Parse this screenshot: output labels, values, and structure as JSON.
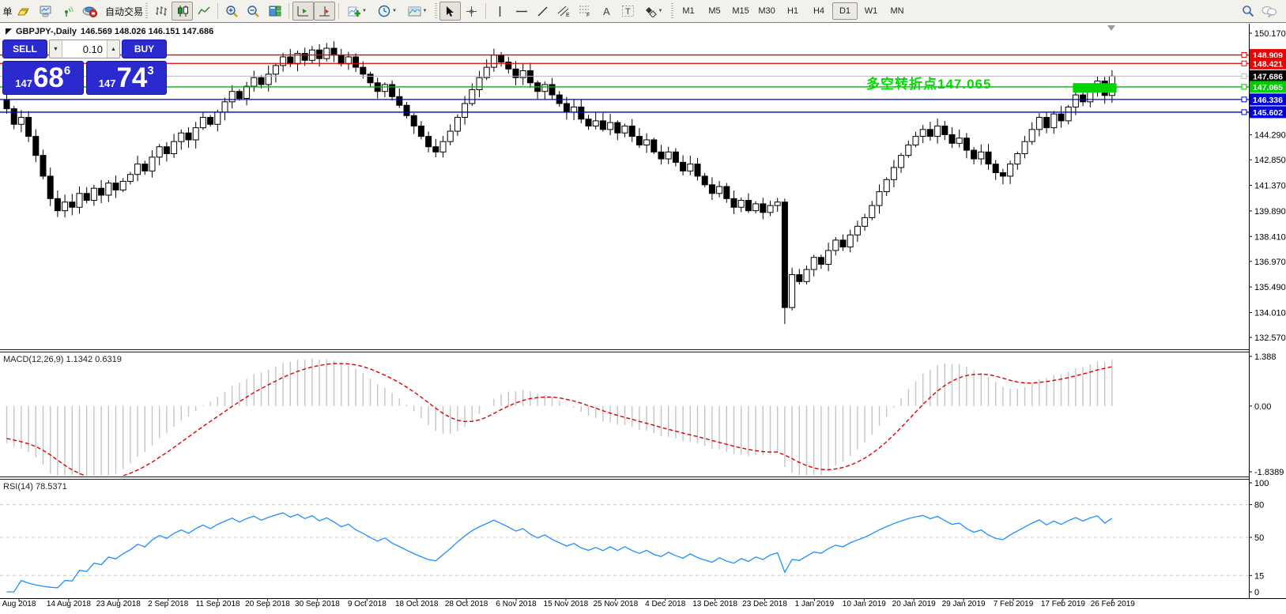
{
  "toolbar": {
    "new_order_partial": "单",
    "auto_trading_label": "自动交易",
    "icons": [
      "new-order",
      "gold-bar",
      "market-watch",
      "signal",
      "auto-trading",
      "bar-chart-type",
      "candlestick-type",
      "line-chart-type",
      "zoom-in",
      "zoom-out",
      "tile-windows",
      "auto-scroll",
      "chart-shift",
      "indicators-add",
      "periods",
      "templates",
      "cursor",
      "crosshair",
      "vertical-line",
      "horizontal-line",
      "trendline",
      "equidistant-channel",
      "fibonacci",
      "text",
      "text-label",
      "arrows",
      "search",
      "chat"
    ],
    "timeframes": [
      "M1",
      "M5",
      "M15",
      "M30",
      "H1",
      "H4",
      "D1",
      "W1",
      "MN"
    ],
    "active_timeframe": "D1"
  },
  "chart": {
    "title_symbol": "GBPJPY-,Daily",
    "title_ohlc": "146.569 148.026 146.151 147.686",
    "trade_panel": {
      "sell": "SELL",
      "buy": "BUY",
      "volume": "0.10",
      "sell_price_prefix": "147",
      "sell_price_main": "68",
      "sell_price_sup": "6",
      "buy_price_prefix": "147",
      "buy_price_main": "74",
      "buy_price_sup": "3"
    },
    "annotation": "多空转折点147.065",
    "annotation_color": "#00dc00",
    "levels": [
      {
        "value": "148.909",
        "color": "#e60000",
        "label_bg": "#ee0000"
      },
      {
        "value": "148.421",
        "color": "#e60000",
        "label_bg": "#ee0000"
      },
      {
        "value": "147.686",
        "color": "#b8b8b8",
        "label_bg": "#000000",
        "current": true
      },
      {
        "value": "147.065",
        "color": "#00bb00",
        "label_bg": "#00cc00"
      },
      {
        "value": "146.336",
        "color": "#0000cc",
        "label_bg": "#0000dd"
      },
      {
        "value": "145.602",
        "color": "#0000cc",
        "label_bg": "#0000dd"
      }
    ],
    "y_ticks": [
      "150.170",
      "144.290",
      "142.850",
      "141.370",
      "139.890",
      "138.410",
      "136.970",
      "135.490",
      "134.010",
      "132.570"
    ],
    "x_labels": [
      "Aug 2018",
      "14 Aug 2018",
      "23 Aug 2018",
      "2 Sep 2018",
      "11 Sep 2018",
      "20 Sep 2018",
      "30 Sep 2018",
      "9 Oct 2018",
      "18 Oct 2018",
      "28 Oct 2018",
      "6 Nov 2018",
      "15 Nov 2018",
      "25 Nov 2018",
      "4 Dec 2018",
      "13 Dec 2018",
      "23 Dec 2018",
      "1 Jan 2019",
      "10 Jan 2019",
      "20 Jan 2019",
      "29 Jan 2019",
      "7 Feb 2019",
      "17 Feb 2019",
      "26 Feb 2019"
    ],
    "green_zone": {
      "start_index": 147,
      "end_index": 153,
      "price_top": 147.28,
      "price_bottom": 146.74,
      "color": "#00d400"
    }
  },
  "chart_data": {
    "type": "candlestick",
    "symbol": "GBPJPY-",
    "period": "Daily",
    "current_ohlc": {
      "open": 146.569,
      "high": 148.026,
      "low": 146.151,
      "close": 147.686
    },
    "first_open": 146.3,
    "crash_index": 107,
    "crash_ohlc": [
      140.4,
      140.6,
      133.35,
      134.3
    ],
    "ylim": [
      131.9,
      150.75
    ],
    "closes": [
      145.8,
      144.9,
      145.3,
      144.2,
      143.1,
      141.9,
      140.6,
      139.9,
      140.4,
      140.1,
      140.9,
      140.5,
      141.2,
      140.8,
      141.5,
      141.1,
      141.6,
      142.0,
      142.6,
      142.2,
      143.0,
      143.6,
      143.2,
      143.9,
      144.4,
      144.0,
      144.7,
      145.3,
      144.9,
      145.6,
      146.2,
      146.8,
      146.4,
      147.1,
      147.6,
      147.2,
      147.8,
      148.3,
      148.8,
      148.4,
      149.0,
      148.6,
      149.2,
      148.7,
      149.3,
      148.9,
      148.4,
      148.8,
      148.2,
      147.8,
      147.3,
      146.8,
      147.2,
      146.5,
      146.0,
      145.4,
      144.8,
      144.2,
      143.6,
      143.3,
      143.9,
      144.5,
      145.3,
      146.1,
      146.9,
      147.6,
      148.2,
      148.9,
      148.5,
      148.1,
      147.6,
      148.0,
      147.3,
      146.8,
      147.2,
      146.6,
      146.1,
      145.6,
      145.9,
      145.2,
      144.8,
      145.1,
      144.6,
      145.0,
      144.4,
      144.8,
      144.2,
      143.7,
      144.0,
      143.3,
      142.9,
      143.3,
      142.7,
      142.2,
      142.6,
      141.9,
      141.4,
      140.9,
      141.3,
      140.6,
      140.1,
      140.5,
      139.9,
      140.3,
      139.8,
      140.2,
      140.4,
      134.3,
      136.2,
      135.8,
      136.5,
      137.2,
      136.8,
      137.6,
      138.2,
      137.8,
      138.5,
      139.0,
      139.5,
      140.2,
      141.0,
      141.7,
      142.4,
      143.1,
      143.7,
      144.2,
      144.6,
      144.2,
      144.8,
      144.3,
      143.8,
      144.1,
      143.4,
      142.9,
      143.3,
      142.6,
      142.1,
      141.9,
      142.6,
      143.2,
      143.9,
      144.6,
      145.3,
      144.7,
      145.5,
      145.1,
      145.9,
      146.6,
      146.2,
      146.9,
      147.4,
      146.569,
      147.686
    ]
  },
  "macd": {
    "name": "MACD(12,26,9)",
    "values": "1.1342 0.6319",
    "fast": 12,
    "slow": 26,
    "signal": 9,
    "y_ticks": [
      "1.388",
      "0.00",
      "-1.8389"
    ],
    "range": [
      -1.8389,
      1.388
    ],
    "histogram_color": "#c4c4c4",
    "signal_color": "#dd0000"
  },
  "rsi": {
    "name": "RSI(14)",
    "value": "78.5371",
    "period": 14,
    "y_ticks": [
      "100",
      "80",
      "50",
      "15",
      "0"
    ],
    "levels": [
      80,
      50,
      15
    ],
    "range": [
      0,
      100
    ],
    "line_color": "#1e90ff"
  }
}
